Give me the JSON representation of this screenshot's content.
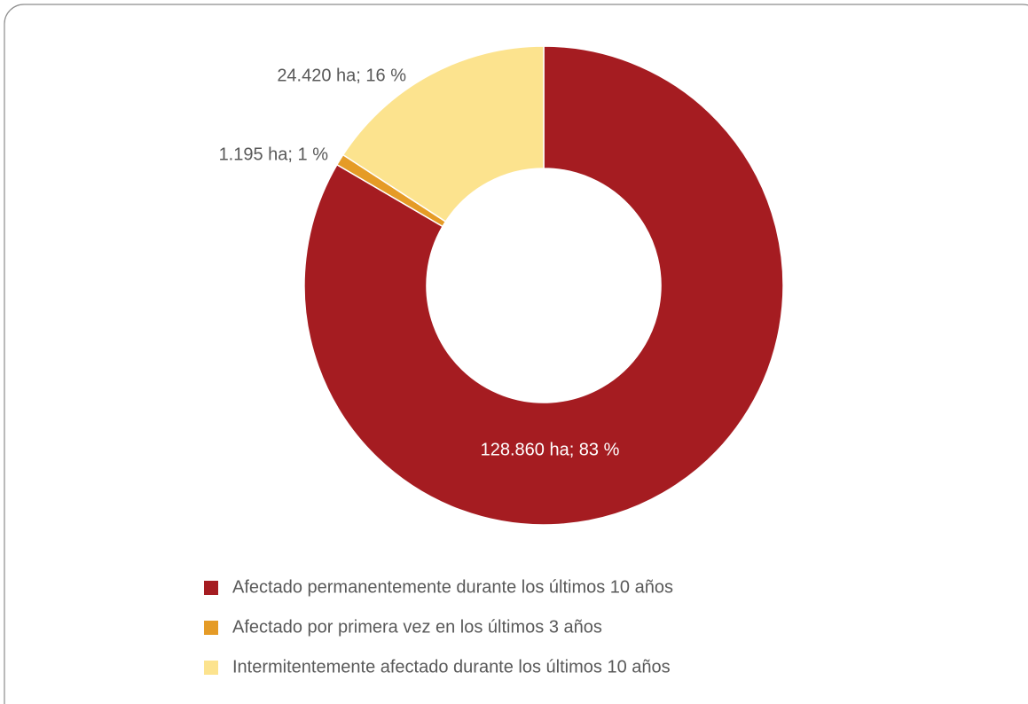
{
  "chart_data": {
    "type": "donut",
    "categories": [
      "Afectado permanentemente durante los últimos 10 años",
      "Afectado por primera vez en los últimos 3 años",
      "Intermitentemente afectado durante los últimos 10 años"
    ],
    "values": [
      128860,
      1195,
      24420
    ],
    "value_labels": [
      "128.860 ha; 83 %",
      "1.195 ha; 1 %",
      "24.420 ha; 16 %"
    ],
    "colors": [
      "#a51c21",
      "#e59b26",
      "#fce38e"
    ],
    "legend": "bottom"
  }
}
